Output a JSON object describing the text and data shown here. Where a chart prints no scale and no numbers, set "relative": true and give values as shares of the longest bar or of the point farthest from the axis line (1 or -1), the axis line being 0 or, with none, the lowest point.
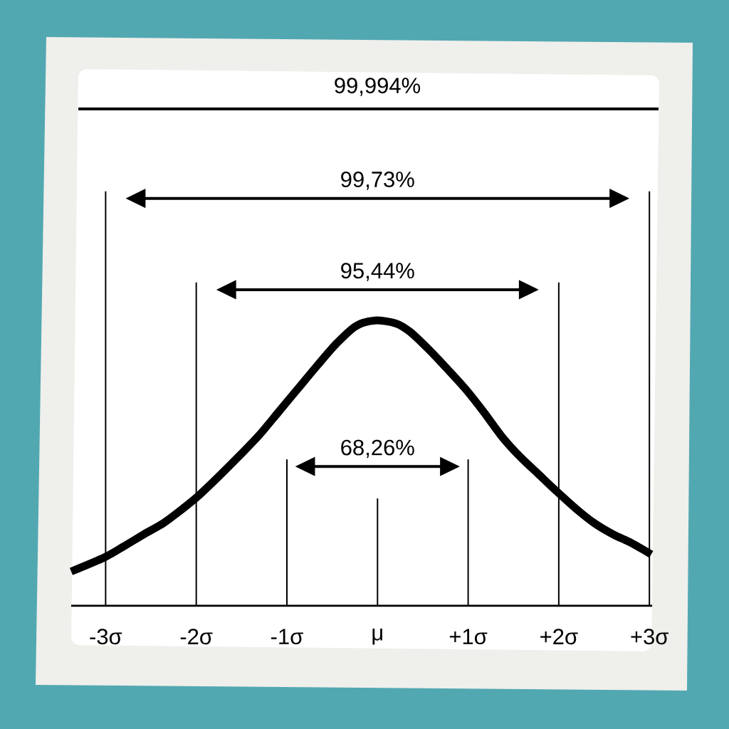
{
  "chart_data": {
    "type": "line",
    "relative": true,
    "color": "#000000",
    "x": [
      -3.38,
      -3.01,
      -2.79,
      -2.58,
      -2.36,
      -2.15,
      -1.96,
      -1.73,
      -1.51,
      -1.3,
      -1.09,
      -0.88,
      -0.67,
      -0.45,
      -0.24,
      -0.03,
      0.2,
      0.36,
      0.56,
      0.77,
      0.97,
      1.17,
      1.38,
      1.58,
      1.78,
      1.98,
      2.19,
      2.39,
      2.6,
      2.8,
      3.02
    ],
    "values": [
      0.12,
      0.17,
      0.21,
      0.25,
      0.29,
      0.34,
      0.39,
      0.46,
      0.53,
      0.6,
      0.68,
      0.76,
      0.84,
      0.92,
      0.98,
      1.0,
      0.99,
      0.96,
      0.9,
      0.83,
      0.76,
      0.68,
      0.59,
      0.52,
      0.46,
      0.4,
      0.34,
      0.29,
      0.25,
      0.22,
      0.18
    ],
    "xlim": [
      -3.38,
      3.03
    ],
    "xticks": [
      {
        "value": -3,
        "label": "-3σ"
      },
      {
        "value": -2,
        "label": "-2σ"
      },
      {
        "value": -1,
        "label": "-1σ"
      },
      {
        "value": 0,
        "label": "μ"
      },
      {
        "value": 1,
        "label": "+1σ"
      },
      {
        "value": 2,
        "label": "+2σ"
      },
      {
        "value": 3,
        "label": "+3σ"
      }
    ],
    "tick_labels": "x",
    "ref_lines": [
      {
        "axis": "x",
        "value": -3
      },
      {
        "axis": "x",
        "value": -2
      },
      {
        "axis": "x",
        "value": -1
      },
      {
        "axis": "x",
        "value": 0
      },
      {
        "axis": "x",
        "value": 1
      },
      {
        "axis": "x",
        "value": 2
      },
      {
        "axis": "x",
        "value": 3
      }
    ],
    "annotations": [
      "99,994%",
      "99,73%",
      "95,44%",
      "68,26%"
    ]
  }
}
